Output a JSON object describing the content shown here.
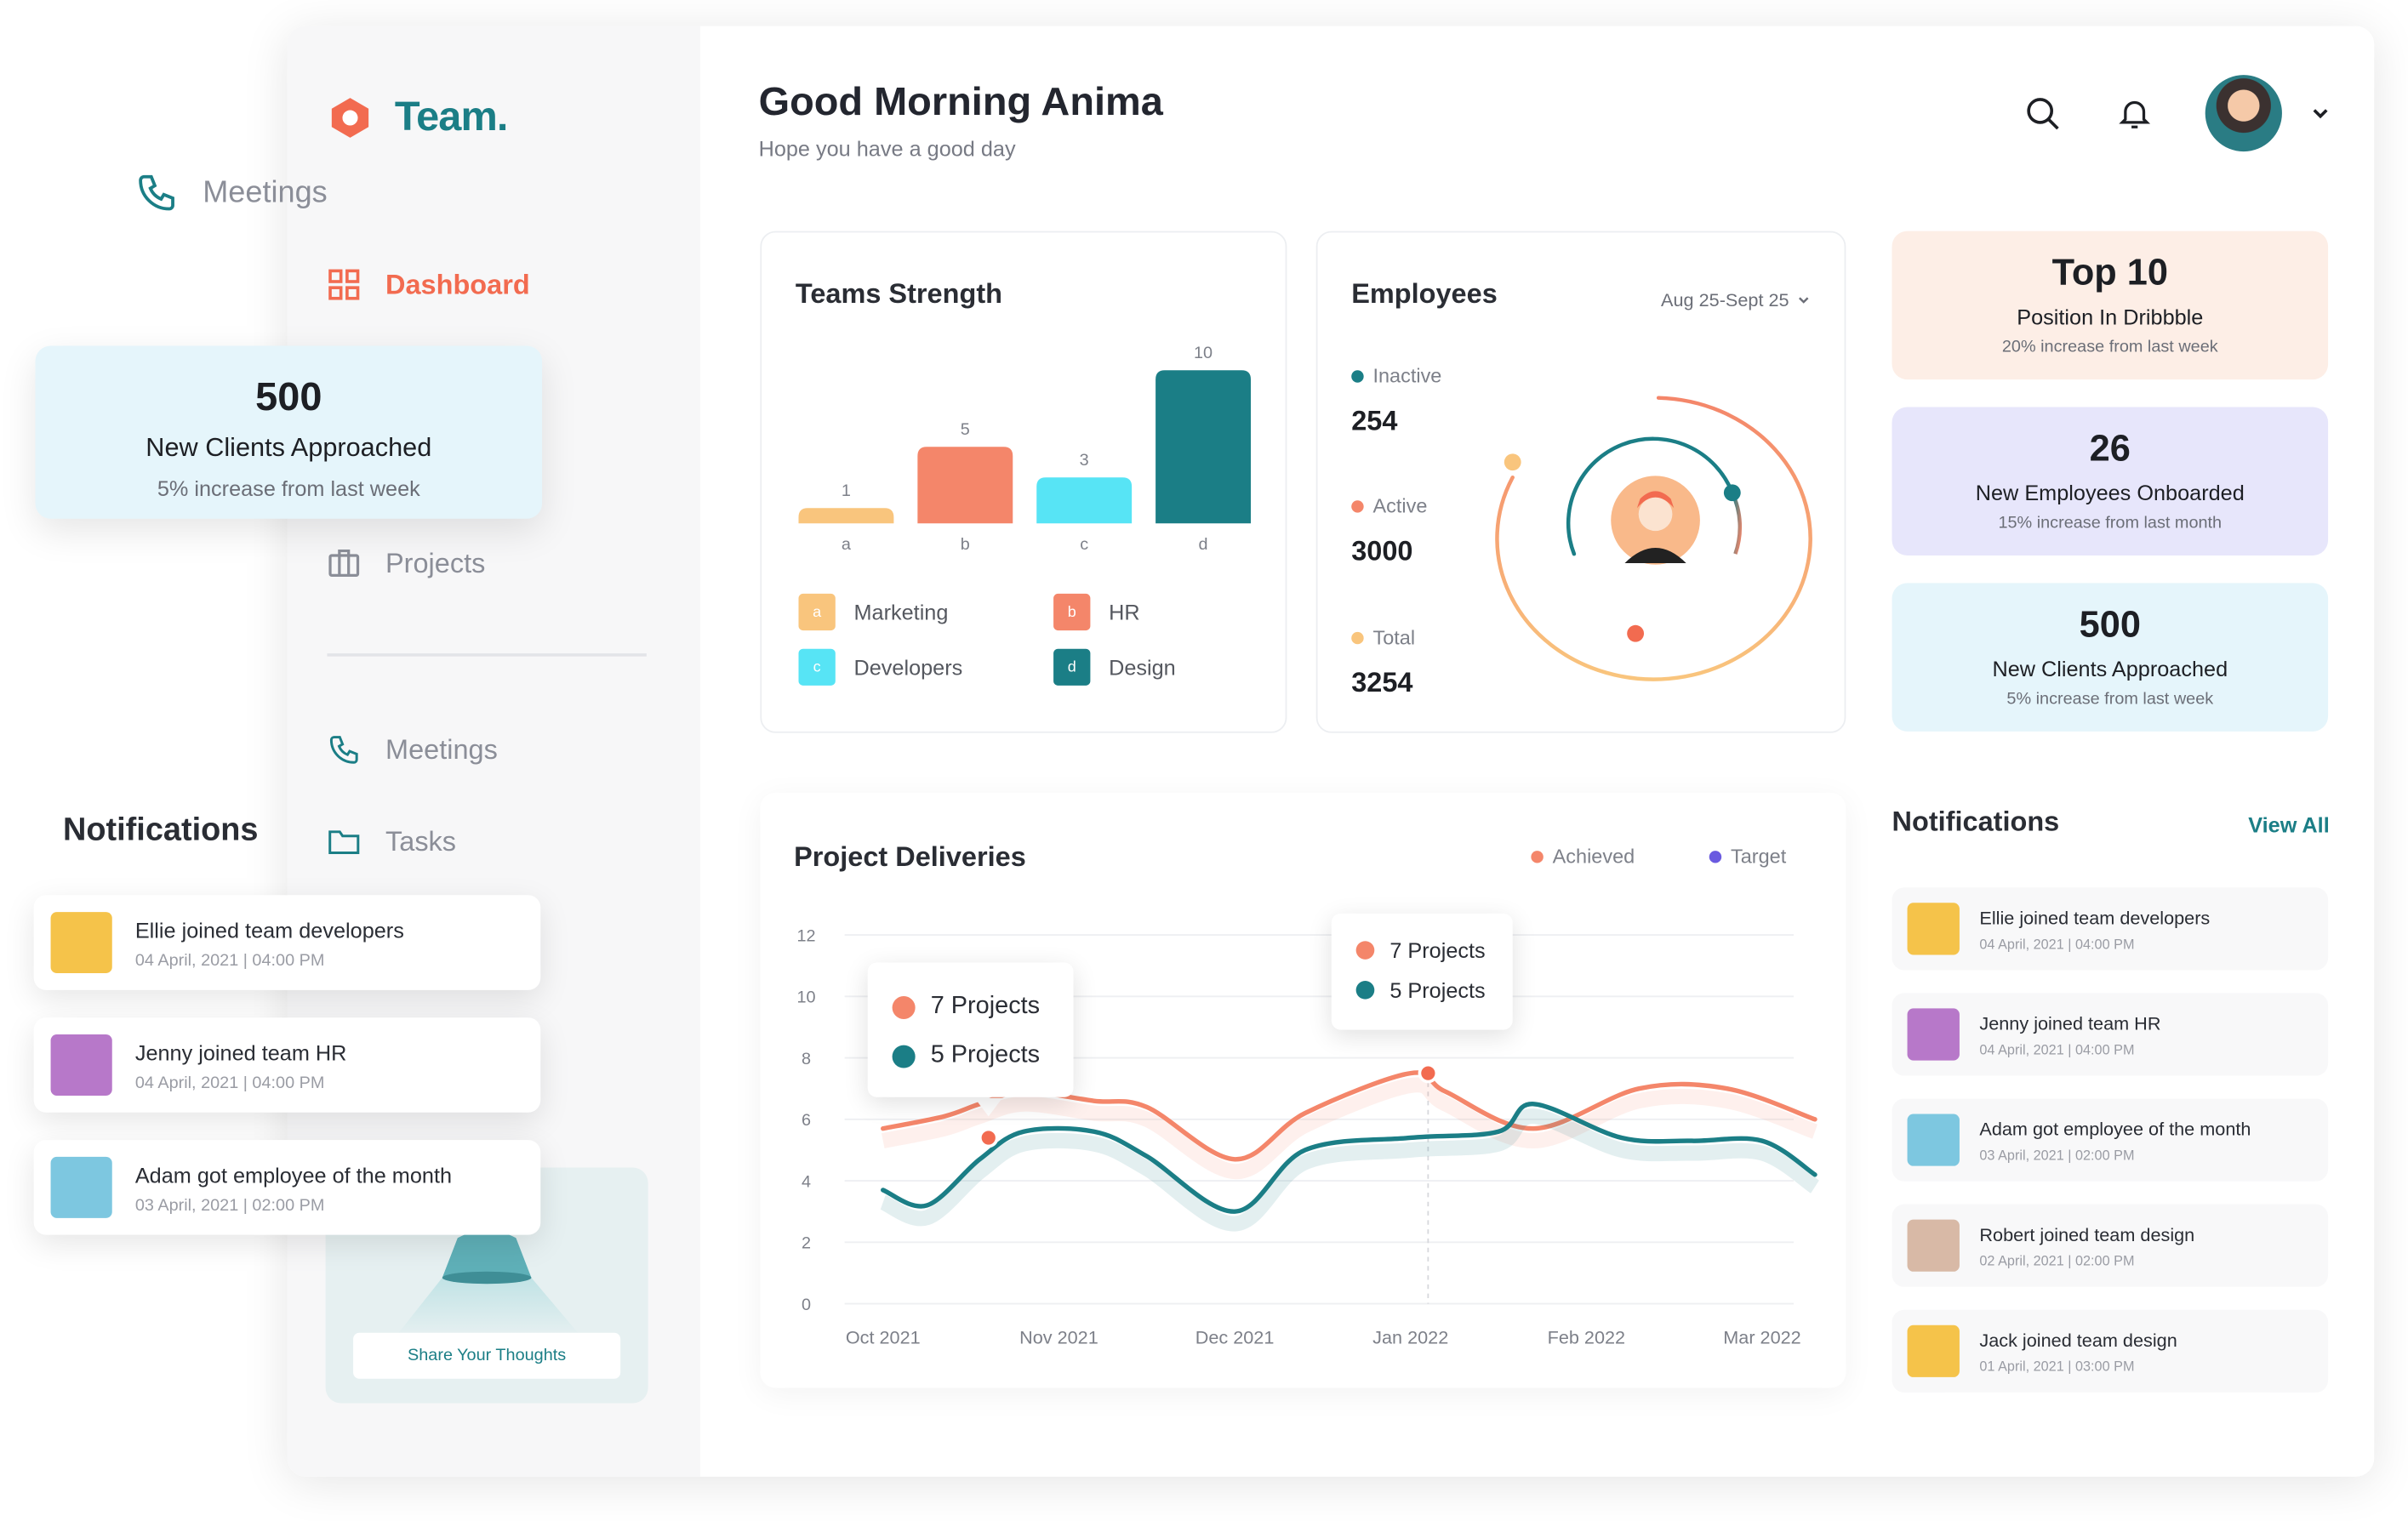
{
  "app": {
    "brand": "Team."
  },
  "colors": {
    "accent": "#f26b50",
    "teal": "#1b7e86",
    "orange": "#f4866a",
    "yellow": "#f9c57d",
    "cyan": "#57e4f5",
    "purple": "#6a5ae0"
  },
  "floating": {
    "meetings_label": "Meetings",
    "stat": {
      "number": "500",
      "label": "New Clients Approached",
      "sub": "5% increase from last week"
    },
    "notifications_heading": "Notifications",
    "notifications": [
      {
        "text": "Ellie joined team developers",
        "date": "04 April, 2021 | 04:00 PM",
        "avatar_color": "#f5c34a"
      },
      {
        "text": "Jenny joined team HR",
        "date": "04 April, 2021 | 04:00 PM",
        "avatar_color": "#b778c9"
      },
      {
        "text": "Adam got employee of the month",
        "date": "03 April, 2021 | 02:00 PM",
        "avatar_color": "#7dc7e0"
      }
    ]
  },
  "sidebar": {
    "items": [
      {
        "label": "Dashboard",
        "icon": "grid-icon"
      },
      {
        "label": "Projects",
        "icon": "briefcase-icon"
      },
      {
        "label": "Meetings",
        "icon": "phone-icon"
      },
      {
        "label": "Tasks",
        "icon": "folder-icon"
      }
    ],
    "promo_button": "Share Your Thoughts"
  },
  "header": {
    "greeting": "Good Morning Anima",
    "subtitle": "Hope you have a good day"
  },
  "teams_strength": {
    "title": "Teams Strength",
    "legend": [
      {
        "key": "a",
        "label": "Marketing",
        "color": "#f9c57d"
      },
      {
        "key": "b",
        "label": "HR",
        "color": "#f4866a"
      },
      {
        "key": "c",
        "label": "Developers",
        "color": "#57e4f5"
      },
      {
        "key": "d",
        "label": "Design",
        "color": "#1b7e86"
      }
    ]
  },
  "employees": {
    "title": "Employees",
    "date_range": "Aug 25-Sept 25",
    "rows": [
      {
        "label": "Inactive",
        "value": "254",
        "color": "#1b7e86"
      },
      {
        "label": "Active",
        "value": "3000",
        "color": "#f4866a"
      },
      {
        "label": "Total",
        "value": "3254",
        "color": "#f9c57d"
      }
    ]
  },
  "stats": [
    {
      "number": "Top 10",
      "label": "Position In Dribbble",
      "sub": "20% increase from last week",
      "bg": "#fdeee6"
    },
    {
      "number": "26",
      "label": "New Employees Onboarded",
      "sub": "15% increase from last month",
      "bg": "#e7e6fb"
    },
    {
      "number": "500",
      "label": "New Clients Approached",
      "sub": "5% increase from last week",
      "bg": "#e5f5fb"
    }
  ],
  "project_deliveries": {
    "title": "Project Deliveries",
    "legend": [
      {
        "label": "Achieved",
        "color": "#f4866a"
      },
      {
        "label": "Target",
        "color": "#6a5ae0"
      }
    ],
    "tooltips": [
      {
        "achieved": "7 Projects",
        "target": "5 Projects"
      },
      {
        "achieved": "7 Projects",
        "target": "5 Projects"
      }
    ]
  },
  "notifications": {
    "heading": "Notifications",
    "view_all": "View All",
    "items": [
      {
        "text": "Ellie joined team developers",
        "date": "04 April, 2021 | 04:00 PM",
        "avatar_color": "#f5c34a"
      },
      {
        "text": "Jenny joined team HR",
        "date": "04 April, 2021 | 04:00 PM",
        "avatar_color": "#b778c9"
      },
      {
        "text": "Adam got employee of the month",
        "date": "03 April, 2021 | 02:00 PM",
        "avatar_color": "#7dc7e0"
      },
      {
        "text": "Robert joined team design",
        "date": "02 April, 2021 | 02:00 PM",
        "avatar_color": "#d8b9a6"
      },
      {
        "text": "Jack joined team design",
        "date": "01 April, 2021 | 03:00 PM",
        "avatar_color": "#f5c34a"
      }
    ]
  },
  "chart_data": [
    {
      "type": "bar",
      "categories": [
        "a",
        "b",
        "c",
        "d"
      ],
      "values": [
        1,
        5,
        3,
        10
      ],
      "colors": [
        "#f9c57d",
        "#f4866a",
        "#57e4f5",
        "#1b7e86"
      ],
      "ylim": [
        0,
        10
      ]
    },
    {
      "type": "line",
      "x": [
        "Oct 2021",
        "Nov 2021",
        "Dec 2021",
        "Jan 2022",
        "Feb 2022",
        "Mar 2022"
      ],
      "yticks": [
        0,
        2,
        4,
        6,
        8,
        10,
        12
      ],
      "ylim": [
        0,
        12
      ],
      "series": [
        {
          "name": "Achieved",
          "color": "#f4866a",
          "points": [
            [
              0,
              5.7
            ],
            [
              0.35,
              6.1
            ],
            [
              0.55,
              6.5
            ],
            [
              0.8,
              6.9
            ],
            [
              1.2,
              6.6
            ],
            [
              1.5,
              6.4
            ],
            [
              2.0,
              4.7
            ],
            [
              2.4,
              6.2
            ],
            [
              3.0,
              7.5
            ],
            [
              3.2,
              6.9
            ],
            [
              3.7,
              5.7
            ],
            [
              4.3,
              7.0
            ],
            [
              4.8,
              7.0
            ],
            [
              5.3,
              6.0
            ]
          ]
        },
        {
          "name": "Target",
          "color": "#1b7e86",
          "points": [
            [
              0,
              3.7
            ],
            [
              0.25,
              3.2
            ],
            [
              0.55,
              4.7
            ],
            [
              0.8,
              5.6
            ],
            [
              1.2,
              5.6
            ],
            [
              1.5,
              4.8
            ],
            [
              2.0,
              3.0
            ],
            [
              2.4,
              5.0
            ],
            [
              3.0,
              5.4
            ],
            [
              3.5,
              5.6
            ],
            [
              3.7,
              6.5
            ],
            [
              4.2,
              5.4
            ],
            [
              4.6,
              5.3
            ],
            [
              5.0,
              5.3
            ],
            [
              5.3,
              4.2
            ]
          ]
        }
      ]
    }
  ]
}
